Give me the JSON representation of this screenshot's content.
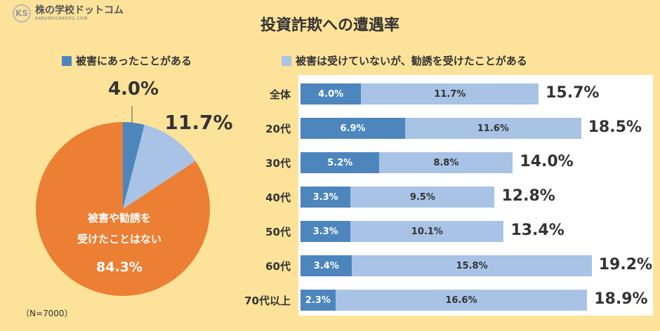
{
  "logo": {
    "mark": "KS",
    "text": "株の学校ドットコム",
    "sub": "KABUNOGAKKOU.COM"
  },
  "title": "投資詐欺への遭遇率",
  "legend": {
    "victim": "被害にあったことがある",
    "solicited": "被害は受けていないが、勧誘を受けたことがある"
  },
  "colors": {
    "victim": "#4c86bd",
    "solicited": "#a8c3e6",
    "none": "#ec7f33",
    "background": "#fde39a"
  },
  "pie_labels": {
    "victim_pct": "4.0%",
    "solicited_pct": "11.7%",
    "none_line1": "被害や勧誘を",
    "none_line2": "受けたことはない",
    "none_pct": "84.3%"
  },
  "note": "（N=7000）",
  "chart_data": [
    {
      "type": "pie",
      "labels": [
        "被害にあったことがある",
        "被害は受けていないが、勧誘を受けたことがある",
        "被害や勧誘を受けたことはない"
      ],
      "values": [
        4.0,
        11.7,
        84.3
      ]
    },
    {
      "type": "bar",
      "orientation": "horizontal",
      "stacked": true,
      "categories": [
        "全体",
        "20代",
        "30代",
        "40代",
        "50代",
        "60代",
        "70代以上"
      ],
      "series": [
        {
          "name": "被害にあったことがある",
          "values": [
            4.0,
            6.9,
            5.2,
            3.3,
            3.3,
            3.4,
            2.3
          ],
          "labels": [
            "4.0%",
            "6.9%",
            "5.2%",
            "3.3%",
            "3.3%",
            "3.4%",
            "2.3%"
          ]
        },
        {
          "name": "被害は受けていないが、勧誘を受けたことがある",
          "values": [
            11.7,
            11.6,
            8.8,
            9.5,
            10.1,
            15.8,
            16.6
          ],
          "labels": [
            "11.7%",
            "11.6%",
            "8.8%",
            "9.5%",
            "10.1%",
            "15.8%",
            "16.6%"
          ]
        }
      ],
      "totals": [
        "15.7%",
        "18.5%",
        "14.0%",
        "12.8%",
        "13.4%",
        "19.2%",
        "18.9%"
      ]
    }
  ]
}
